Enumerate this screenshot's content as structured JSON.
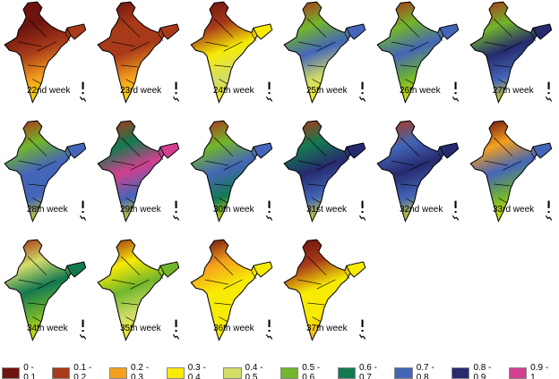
{
  "legend": [
    {
      "label": "0 - 0.1",
      "color": "#6e1410"
    },
    {
      "label": "0.1 - 0.2",
      "color": "#a83a1a"
    },
    {
      "label": "0.2 - 0.3",
      "color": "#f5a01e"
    },
    {
      "label": "0.3 - 0.4",
      "color": "#f7ea05"
    },
    {
      "label": "0.4 - 0.5",
      "color": "#d2dd6a"
    },
    {
      "label": "0.5 - 0.6",
      "color": "#72b62c"
    },
    {
      "label": "0.6 - 0.7",
      "color": "#137a50"
    },
    {
      "label": "0.7 - 0.8",
      "color": "#4466b8"
    },
    {
      "label": "0.8 - 0.9",
      "color": "#262a6e"
    },
    {
      "label": "0.9 - 1",
      "color": "#d2408e"
    }
  ],
  "maps": [
    {
      "label": "22nd week",
      "classes": [
        0,
        0,
        1,
        2,
        3
      ]
    },
    {
      "label": "23rd week",
      "classes": [
        0,
        1,
        1,
        2,
        3
      ]
    },
    {
      "label": "24th week",
      "classes": [
        0,
        1,
        3,
        4,
        3
      ]
    },
    {
      "label": "25th week",
      "classes": [
        1,
        5,
        7,
        4,
        3
      ]
    },
    {
      "label": "26th week",
      "classes": [
        1,
        5,
        7,
        5,
        3
      ]
    },
    {
      "label": "27th week",
      "classes": [
        1,
        5,
        8,
        7,
        3
      ]
    },
    {
      "label": "28th week",
      "classes": [
        1,
        5,
        7,
        7,
        3
      ]
    },
    {
      "label": "29th week",
      "classes": [
        1,
        6,
        9,
        7,
        3
      ]
    },
    {
      "label": "30th week",
      "classes": [
        1,
        5,
        7,
        6,
        3
      ]
    },
    {
      "label": "31st week",
      "classes": [
        1,
        6,
        8,
        7,
        3
      ]
    },
    {
      "label": "32nd week",
      "classes": [
        1,
        7,
        8,
        7,
        3
      ]
    },
    {
      "label": "33rd week",
      "classes": [
        0,
        2,
        7,
        5,
        3
      ]
    },
    {
      "label": "34th week",
      "classes": [
        1,
        4,
        6,
        5,
        3
      ]
    },
    {
      "label": "35th week",
      "classes": [
        1,
        3,
        5,
        4,
        3
      ]
    },
    {
      "label": "36th week",
      "classes": [
        0,
        2,
        3,
        3,
        3
      ]
    },
    {
      "label": "37th week",
      "classes": [
        0,
        1,
        3,
        3,
        2
      ]
    }
  ]
}
